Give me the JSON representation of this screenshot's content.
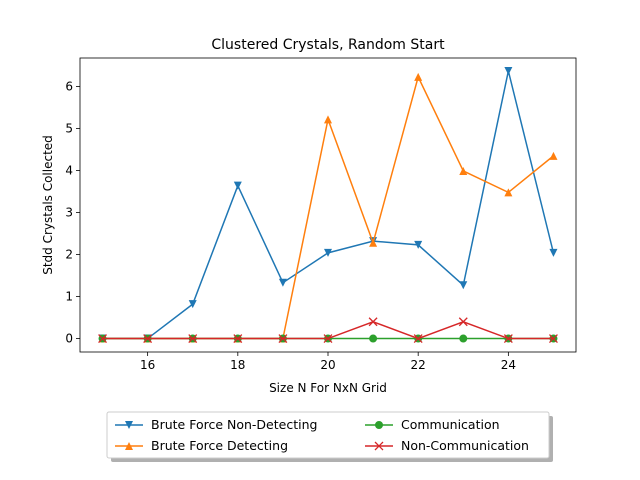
{
  "chart_data": {
    "type": "line",
    "title": "Clustered Crystals, Random Start",
    "xlabel": "Size N For NxN Grid",
    "ylabel": "Stdd Crystals Collected",
    "x": [
      15,
      16,
      17,
      18,
      19,
      20,
      21,
      22,
      23,
      24,
      25
    ],
    "xlim": [
      14.5,
      25.5
    ],
    "ylim": [
      -0.32,
      6.68
    ],
    "xticks": [
      16,
      18,
      20,
      22,
      24
    ],
    "yticks": [
      0,
      1,
      2,
      3,
      4,
      5,
      6
    ],
    "grid": false,
    "legend_position": "bottom-center",
    "series": [
      {
        "name": "Brute Force Non-Detecting",
        "color": "#1f77b4",
        "marker": "triangle-down",
        "values": [
          0,
          0,
          0.82,
          3.64,
          1.33,
          2.04,
          2.32,
          2.23,
          1.27,
          6.37,
          2.04
        ]
      },
      {
        "name": "Brute Force Detecting",
        "color": "#ff7f0e",
        "marker": "triangle-up",
        "values": [
          0,
          0,
          0,
          0,
          0,
          5.22,
          2.28,
          6.23,
          3.99,
          3.48,
          4.35
        ]
      },
      {
        "name": "Communication",
        "color": "#2ca02c",
        "marker": "circle",
        "values": [
          0,
          0,
          0,
          0,
          0,
          0,
          0,
          0,
          0,
          0,
          0
        ]
      },
      {
        "name": "Non-Communication",
        "color": "#d62728",
        "marker": "x",
        "values": [
          0,
          0,
          0,
          0,
          0,
          0,
          0.4,
          0,
          0.4,
          0,
          0
        ]
      }
    ]
  }
}
